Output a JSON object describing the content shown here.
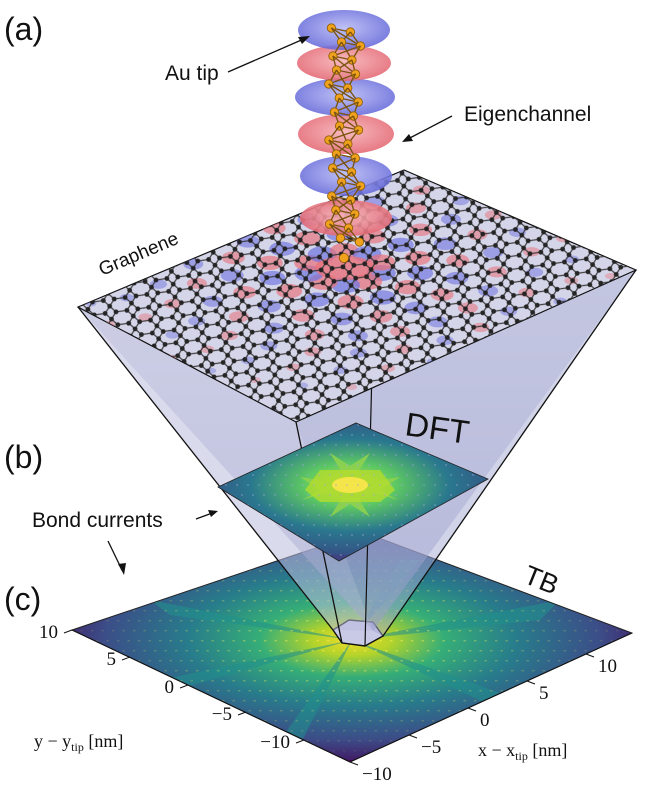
{
  "panels": {
    "a": "(a)",
    "b": "(b)",
    "c": "(c)"
  },
  "labels": {
    "au_tip": "Au tip",
    "eigenchannel": "Eigenchannel",
    "graphene": "Graphene",
    "dft": "DFT",
    "bond_currents": "Bond currents",
    "tb": "TB"
  },
  "axes": {
    "x_label": "x − x",
    "x_sub": "tip",
    "x_unit": " [nm]",
    "y_label": "y − y",
    "y_sub": "tip",
    "y_unit": " [nm]",
    "x_ticks": [
      "−10",
      "−5",
      "0",
      "5",
      "10"
    ],
    "y_ticks": [
      "10",
      "5",
      "0",
      "−5",
      "−10"
    ]
  },
  "colors": {
    "lobe_red": "#e8707a",
    "lobe_blue": "#6f73e0",
    "gold": "#f0a21c",
    "atom": "#1c1c1c",
    "colormap_low": "#440154",
    "colormap_mid": "#21918c",
    "colormap_high": "#fde725"
  }
}
